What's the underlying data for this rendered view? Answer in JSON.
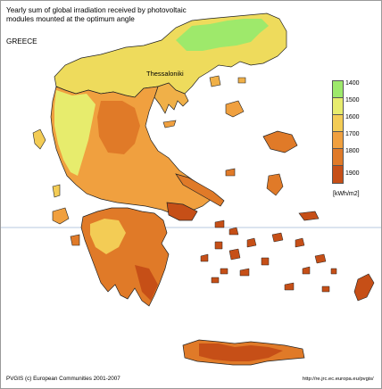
{
  "map": {
    "title": "Yearly sum of global irradiation received by photovoltaic modules mounted at the optimum angle",
    "country": "GREECE",
    "city_label": "Thessaloniki",
    "legend": {
      "entries": [
        {
          "label": "1400",
          "color": "#9ee96b"
        },
        {
          "label": "1500",
          "color": "#e7ec6d"
        },
        {
          "label": "1600",
          "color": "#f3cc55"
        },
        {
          "label": "1700",
          "color": "#f0a03f"
        },
        {
          "label": "1800",
          "color": "#e07a28"
        },
        {
          "label": "1900",
          "color": "#c64f17"
        }
      ],
      "unit": "[kWh/m2]"
    },
    "credit_left": "PVGIS (c) European Communities 2001-2007",
    "credit_right": "http://re.jrc.ec.europa.eu/pvgis/"
  }
}
